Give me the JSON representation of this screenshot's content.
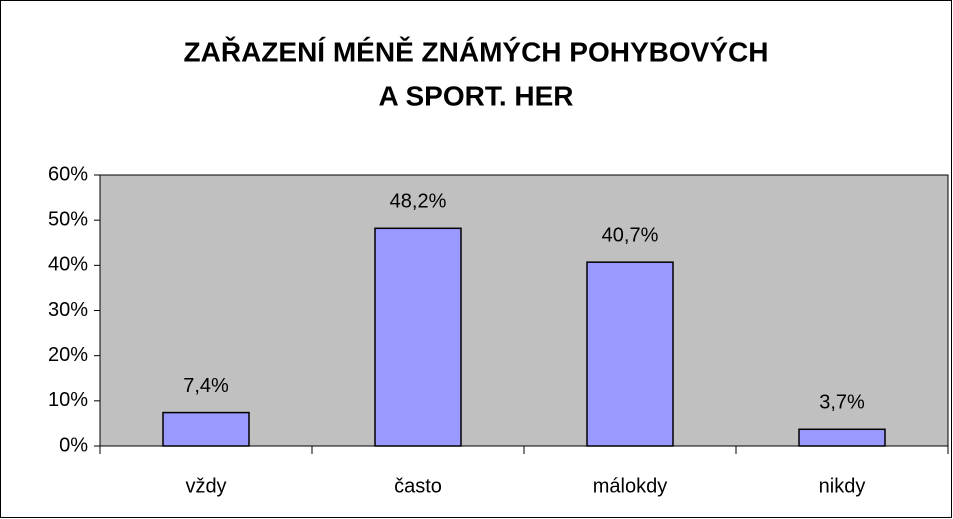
{
  "chart_data": {
    "type": "bar",
    "title": [
      "ZAŘAZENÍ MÉNĚ ZNÁMÝCH POHYBOVÝCH",
      "A SPORT. HER"
    ],
    "categories": [
      "vždy",
      "často",
      "málokdy",
      "nikdy"
    ],
    "values": [
      7.4,
      48.2,
      40.7,
      3.7
    ],
    "value_labels": [
      "7,4%",
      "48,2%",
      "40,7%",
      "3,7%"
    ],
    "color": "#9999ff",
    "ylim": [
      0,
      60
    ],
    "yticks": [
      {
        "value": 0,
        "label": "0%"
      },
      {
        "value": 10,
        "label": "10%"
      },
      {
        "value": 20,
        "label": "20%"
      },
      {
        "value": 30,
        "label": "30%"
      },
      {
        "value": 40,
        "label": "40%"
      },
      {
        "value": 50,
        "label": "50%"
      },
      {
        "value": 60,
        "label": "60%"
      }
    ],
    "grid": false
  }
}
